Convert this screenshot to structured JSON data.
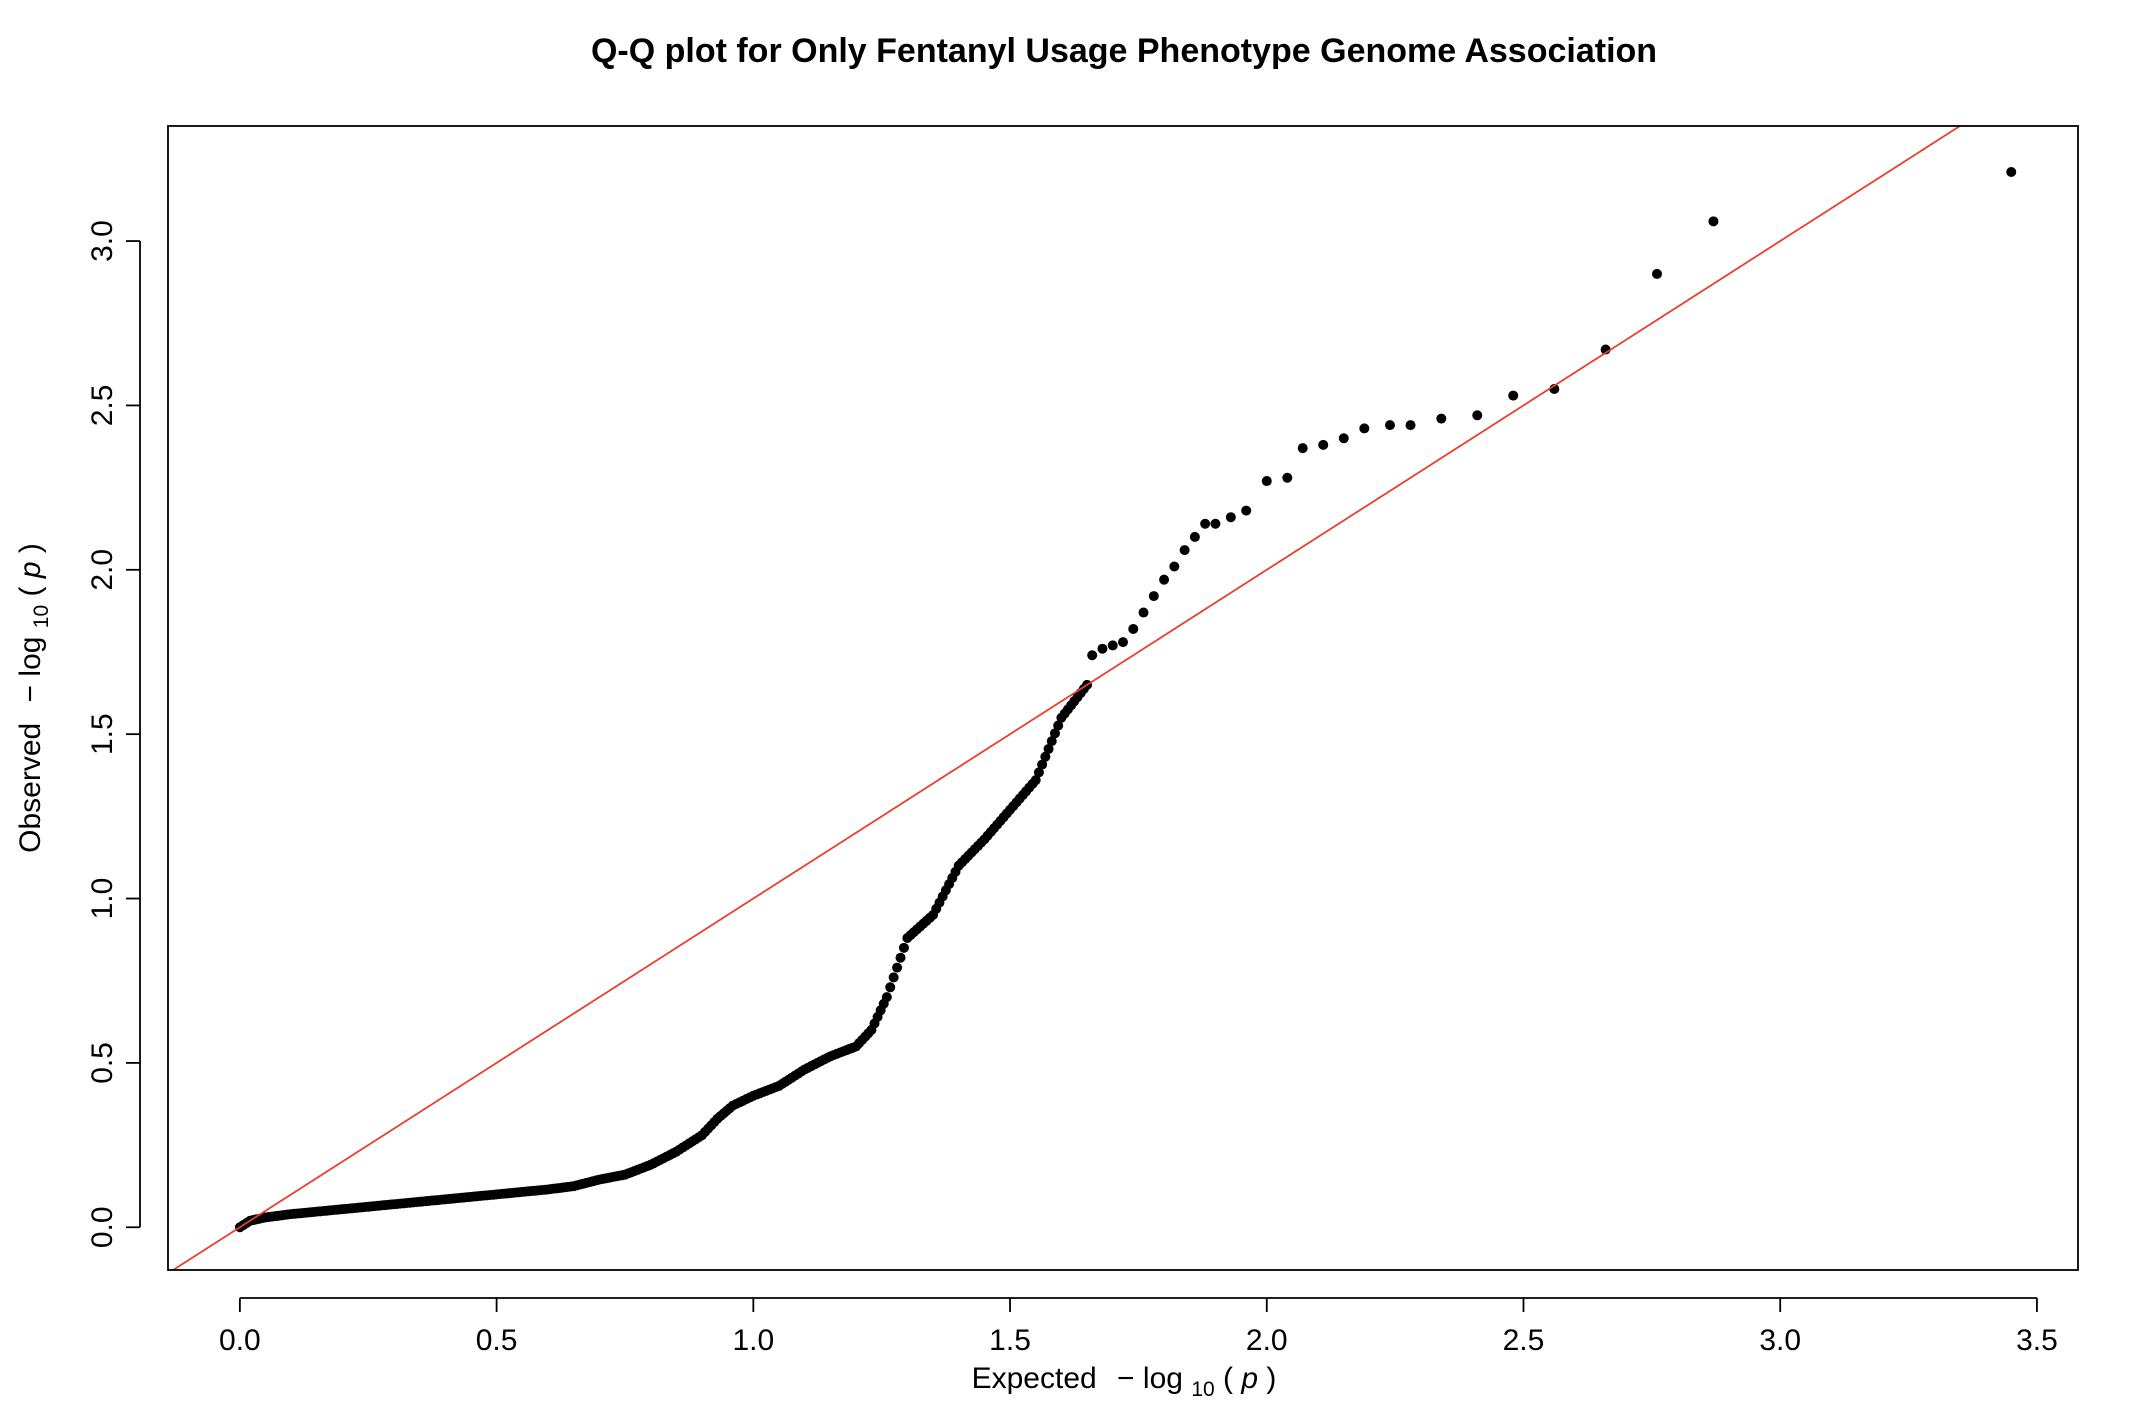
{
  "chart_data": {
    "type": "scatter",
    "title": "Q-Q plot for Only Fentanyl Usage Phenotype Genome Association",
    "xlabel": {
      "prefix": "Expected",
      "minus": "−",
      "log": "log",
      "sub": "10",
      "open_paren": "(",
      "var": "p",
      "close_paren": ")"
    },
    "ylabel": {
      "prefix": "Observed",
      "minus": "−",
      "log": "log",
      "sub": "10",
      "open_paren": "(",
      "var": "p",
      "close_paren": ")"
    },
    "xlim": [
      -0.14,
      3.58
    ],
    "ylim": [
      -0.13,
      3.35
    ],
    "xticks": [
      0.0,
      0.5,
      1.0,
      1.5,
      2.0,
      2.5,
      3.0,
      3.5
    ],
    "xtick_labels": [
      "0.0",
      "0.5",
      "1.0",
      "1.5",
      "2.0",
      "2.5",
      "3.0",
      "3.5"
    ],
    "yticks": [
      0.0,
      0.5,
      1.0,
      1.5,
      2.0,
      2.5,
      3.0
    ],
    "ytick_labels": [
      "0.0",
      "0.5",
      "1.0",
      "1.5",
      "2.0",
      "2.5",
      "3.0"
    ],
    "reference_line": {
      "slope": 1,
      "intercept": 0,
      "color": "#e8402a"
    },
    "point_color": "#000000",
    "grid": false,
    "curve_knots": [
      [
        0.0,
        0.0
      ],
      [
        0.02,
        0.02
      ],
      [
        0.05,
        0.03
      ],
      [
        0.1,
        0.04
      ],
      [
        0.2,
        0.055
      ],
      [
        0.3,
        0.07
      ],
      [
        0.4,
        0.085
      ],
      [
        0.5,
        0.1
      ],
      [
        0.6,
        0.115
      ],
      [
        0.65,
        0.125
      ],
      [
        0.7,
        0.145
      ],
      [
        0.75,
        0.16
      ],
      [
        0.8,
        0.19
      ],
      [
        0.85,
        0.23
      ],
      [
        0.9,
        0.28
      ],
      [
        0.93,
        0.33
      ],
      [
        0.96,
        0.37
      ],
      [
        1.0,
        0.4
      ],
      [
        1.05,
        0.43
      ],
      [
        1.1,
        0.48
      ],
      [
        1.15,
        0.52
      ],
      [
        1.2,
        0.55
      ],
      [
        1.23,
        0.6
      ],
      [
        1.26,
        0.7
      ],
      [
        1.3,
        0.88
      ],
      [
        1.35,
        0.95
      ],
      [
        1.4,
        1.1
      ],
      [
        1.45,
        1.18
      ],
      [
        1.5,
        1.27
      ],
      [
        1.55,
        1.36
      ],
      [
        1.6,
        1.55
      ],
      [
        1.65,
        1.65
      ]
    ],
    "tail_points": [
      [
        1.66,
        1.74
      ],
      [
        1.68,
        1.76
      ],
      [
        1.7,
        1.77
      ],
      [
        1.72,
        1.78
      ],
      [
        1.74,
        1.82
      ],
      [
        1.76,
        1.87
      ],
      [
        1.78,
        1.92
      ],
      [
        1.8,
        1.97
      ],
      [
        1.82,
        2.01
      ],
      [
        1.84,
        2.06
      ],
      [
        1.86,
        2.1
      ],
      [
        1.88,
        2.14
      ],
      [
        1.9,
        2.14
      ],
      [
        1.93,
        2.16
      ],
      [
        1.96,
        2.18
      ],
      [
        2.0,
        2.27
      ],
      [
        2.04,
        2.28
      ],
      [
        2.07,
        2.37
      ],
      [
        2.11,
        2.38
      ],
      [
        2.15,
        2.4
      ],
      [
        2.19,
        2.43
      ],
      [
        2.24,
        2.44
      ],
      [
        2.28,
        2.44
      ],
      [
        2.34,
        2.46
      ],
      [
        2.41,
        2.47
      ],
      [
        2.48,
        2.53
      ],
      [
        2.56,
        2.55
      ],
      [
        2.66,
        2.67
      ],
      [
        2.76,
        2.9
      ],
      [
        2.87,
        3.06
      ],
      [
        3.45,
        3.21
      ]
    ]
  }
}
